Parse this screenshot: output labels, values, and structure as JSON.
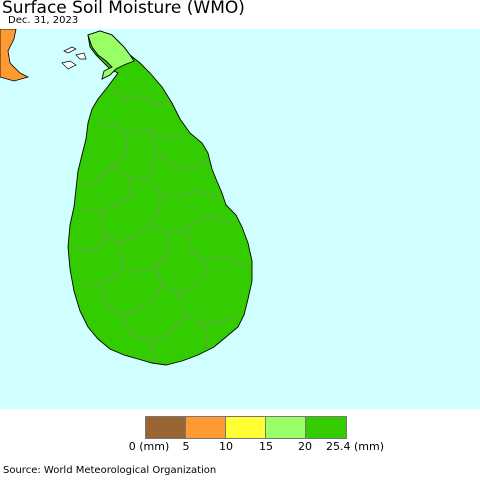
{
  "header": {
    "title": "Surface Soil Moisture (WMO)",
    "date": "Dec. 31, 2023"
  },
  "map": {
    "ocean_color": "#cfffff",
    "land_color": "#33cc00",
    "border_color": "#7a9a6a",
    "coast_color": "#000000",
    "north_tip_color": "#99ff66",
    "india_color": "#ff9933"
  },
  "legend": {
    "colors": [
      "#996633",
      "#ff9933",
      "#ffff33",
      "#99ff66",
      "#33cc00"
    ],
    "labels": [
      "0 (mm)",
      "5",
      "10",
      "15",
      "20",
      "25.4 (mm)"
    ]
  },
  "footer": {
    "source": "Source: World Meteorological Organization"
  }
}
